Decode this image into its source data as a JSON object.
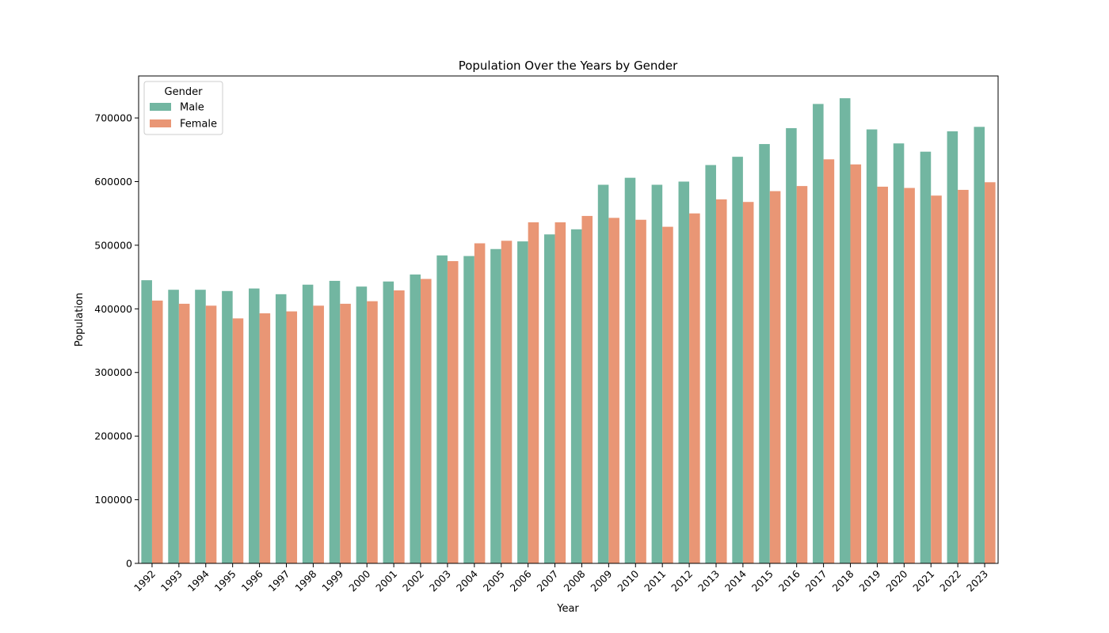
{
  "chart_data": {
    "type": "bar",
    "title": "Population Over the Years by Gender",
    "xlabel": "Year",
    "ylabel": "Population",
    "ylim": [
      0,
      766000
    ],
    "yticks": [
      0,
      100000,
      200000,
      300000,
      400000,
      500000,
      600000,
      700000
    ],
    "ytick_labels": [
      "0",
      "100000",
      "200000",
      "300000",
      "400000",
      "500000",
      "600000",
      "700000"
    ],
    "grid": false,
    "legend": {
      "title": "Gender",
      "placement": "top-left"
    },
    "categories": [
      "1992",
      "1993",
      "1994",
      "1995",
      "1996",
      "1997",
      "1998",
      "1999",
      "2000",
      "2001",
      "2002",
      "2003",
      "2004",
      "2005",
      "2006",
      "2007",
      "2008",
      "2009",
      "2010",
      "2011",
      "2012",
      "2013",
      "2014",
      "2015",
      "2016",
      "2017",
      "2018",
      "2019",
      "2020",
      "2021",
      "2022",
      "2023"
    ],
    "series": [
      {
        "name": "Male",
        "color": "#72b6a1",
        "values": [
          445000,
          430000,
          430000,
          428000,
          432000,
          423000,
          438000,
          444000,
          435000,
          443000,
          454000,
          484000,
          483000,
          494000,
          506000,
          517000,
          525000,
          595000,
          606000,
          595000,
          600000,
          626000,
          639000,
          659000,
          684000,
          722000,
          731000,
          682000,
          660000,
          647000,
          679000,
          686000
        ]
      },
      {
        "name": "Female",
        "color": "#e99675",
        "values": [
          413000,
          408000,
          405000,
          385000,
          393000,
          396000,
          405000,
          408000,
          412000,
          429000,
          447000,
          475000,
          503000,
          507000,
          536000,
          536000,
          546000,
          543000,
          540000,
          529000,
          550000,
          572000,
          568000,
          585000,
          593000,
          635000,
          627000,
          592000,
          590000,
          578000,
          587000,
          599000
        ]
      }
    ]
  }
}
